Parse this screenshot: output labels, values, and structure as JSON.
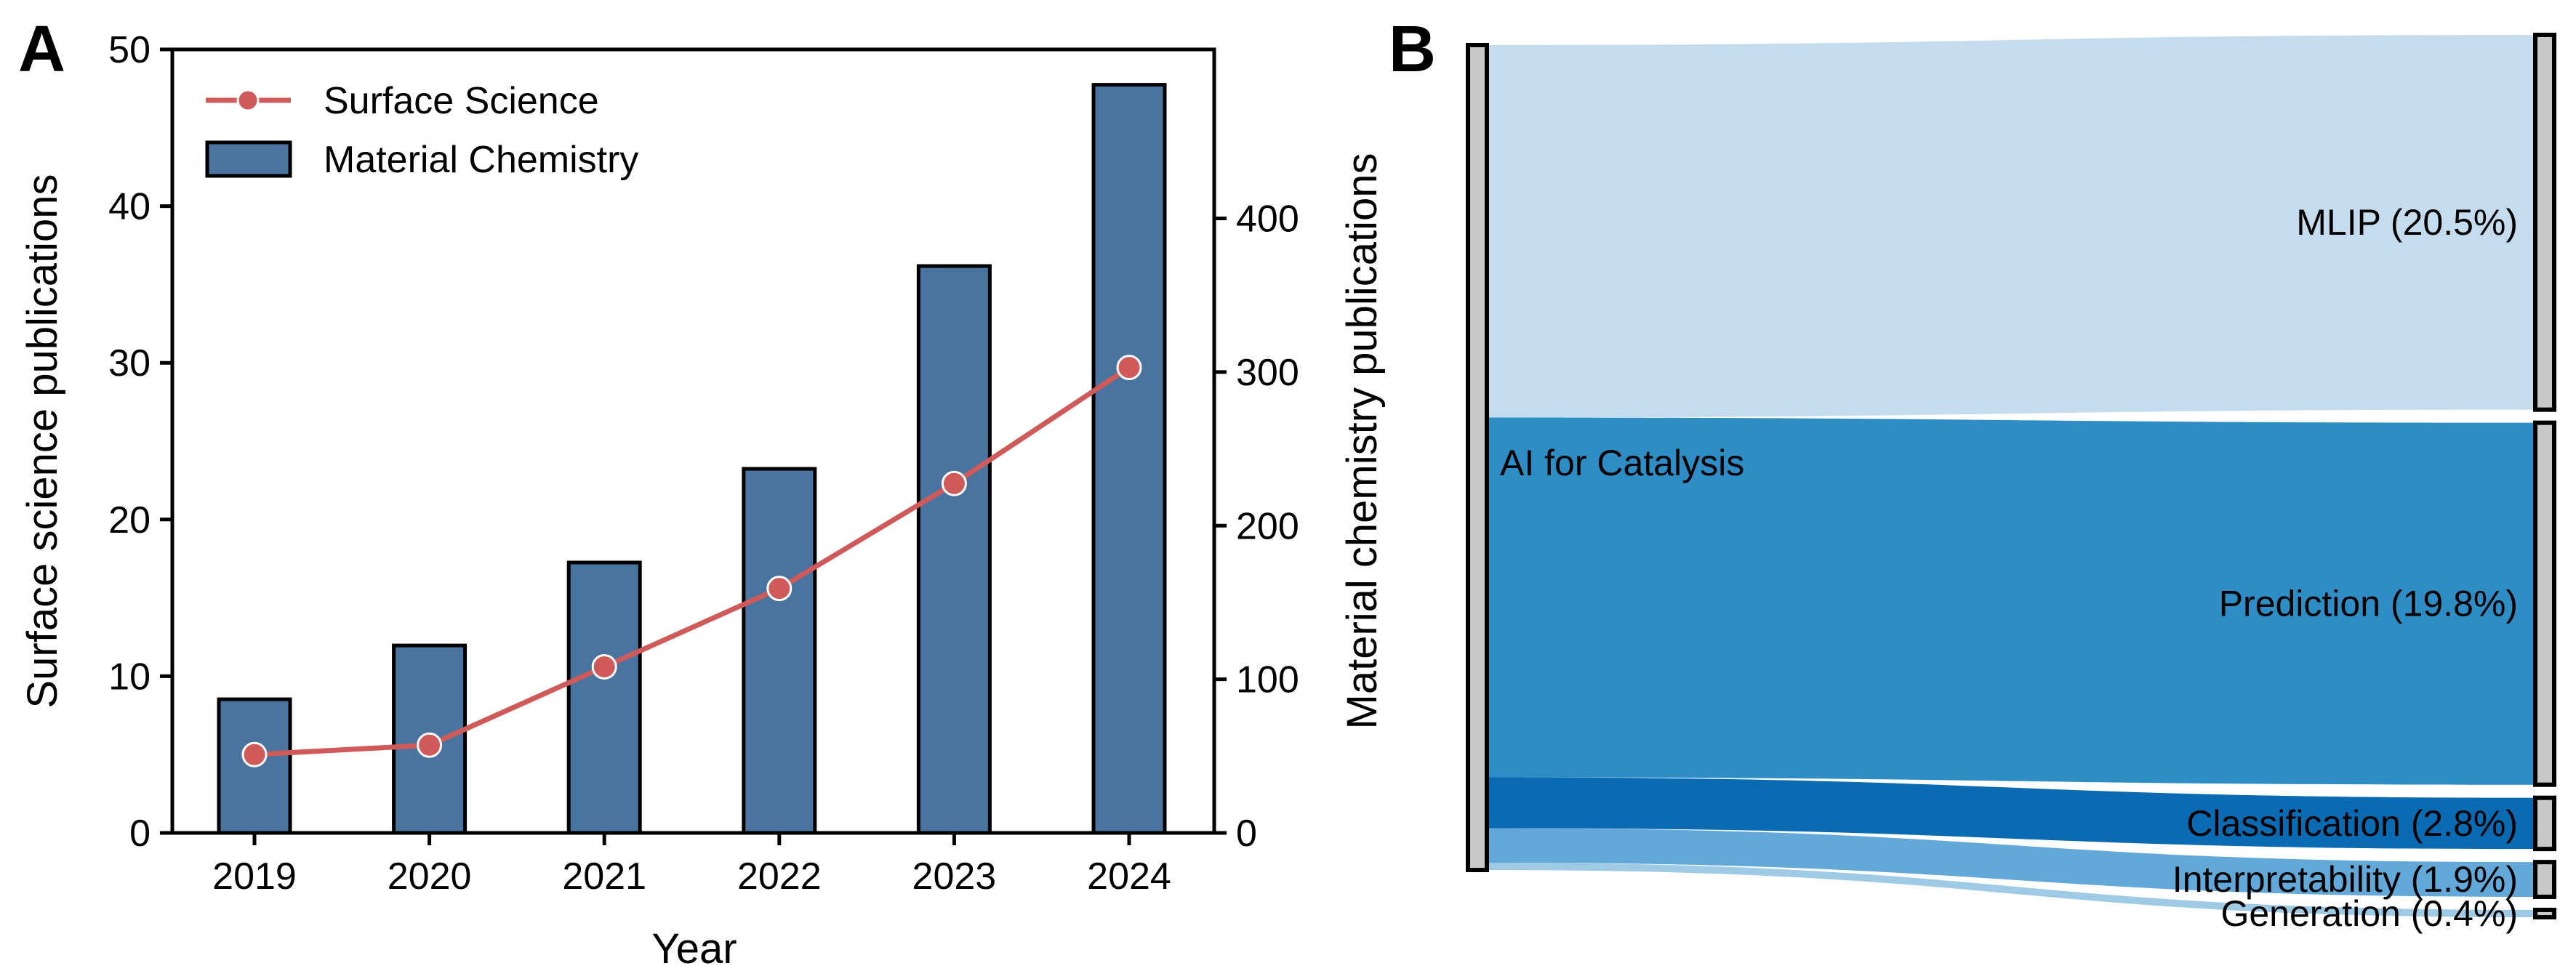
{
  "panels": {
    "a": "A",
    "b": "B"
  },
  "chart_data": [
    {
      "type": "bar",
      "panel": "A",
      "categories": [
        "2019",
        "2020",
        "2021",
        "2022",
        "2023",
        "2024"
      ],
      "xlabel": "Year",
      "ylabel": "Surface science publications",
      "y2label": "Material chemistry publications",
      "ylim": [
        0,
        50
      ],
      "y2lim": [
        0,
        510
      ],
      "yticks": [
        "0",
        "10",
        "20",
        "30",
        "40",
        "50"
      ],
      "y2ticks": [
        "0",
        "100",
        "200",
        "300",
        "400"
      ],
      "legend_position": "top-left",
      "grid": false,
      "series": [
        {
          "name": "Material Chemistry",
          "type": "bar",
          "axis": "right",
          "color": "#4a74a0",
          "values": [
            87,
            122,
            176,
            237,
            369,
            487
          ]
        },
        {
          "name": "Surface Science",
          "type": "line",
          "axis": "left",
          "color": "#d05a5a",
          "values": [
            5,
            5.6,
            10.6,
            15.6,
            22.3,
            29.7
          ]
        }
      ]
    },
    {
      "type": "sankey",
      "panel": "B",
      "source": "AI for Catalysis",
      "source_color": "#c8c8c8",
      "links": [
        {
          "label": "MLIP (20.5%)",
          "value": 20.5,
          "color": "#c5dcee"
        },
        {
          "label": "Prediction (19.8%)",
          "value": 19.8,
          "color": "#2e8dc4"
        },
        {
          "label": "Classification (2.8%)",
          "value": 2.8,
          "color": "#0a6ab2"
        },
        {
          "label": "Interpretability (1.9%)",
          "value": 1.9,
          "color": "#62a8d8"
        },
        {
          "label": "Generation (0.4%)",
          "value": 0.4,
          "color": "#9ecae6"
        }
      ]
    }
  ]
}
